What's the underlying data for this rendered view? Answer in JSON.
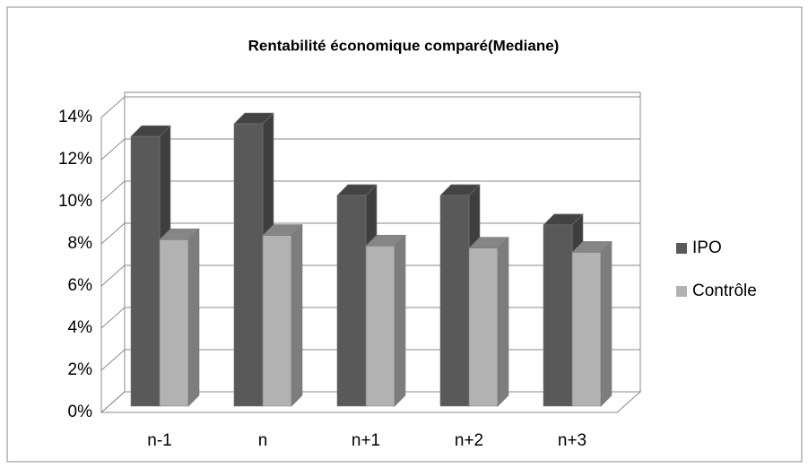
{
  "chart_data": {
    "type": "bar3d",
    "title": "Rentabilité économique comparé(Mediane)",
    "categories": [
      "n-1",
      "n",
      "n+1",
      "n+2",
      "n+3"
    ],
    "series": [
      {
        "name": "IPO",
        "color": "#595959",
        "values": [
          13.1,
          13.7,
          10.3,
          10.3,
          8.9
        ]
      },
      {
        "name": "Contrôle",
        "color": "#b2b2b2",
        "values": [
          8.2,
          8.4,
          7.9,
          7.8,
          7.6
        ]
      }
    ],
    "ylim": [
      0,
      14
    ],
    "yticks": [
      {
        "value": 0,
        "label": "0%"
      },
      {
        "value": 2,
        "label": "2%"
      },
      {
        "value": 4,
        "label": "4%"
      },
      {
        "value": 6,
        "label": "6%"
      },
      {
        "value": 8,
        "label": "8%"
      },
      {
        "value": 10,
        "label": "10%"
      },
      {
        "value": 12,
        "label": "12%"
      },
      {
        "value": 14,
        "label": "14%"
      }
    ],
    "grid": true,
    "legend": "right"
  }
}
